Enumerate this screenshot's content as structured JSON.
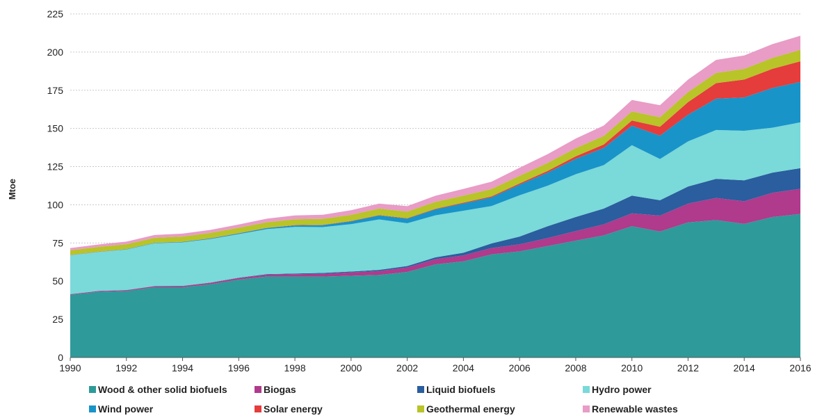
{
  "chart_data": {
    "type": "area",
    "stacked": true,
    "ylabel": "Mtoe",
    "xlabel": "",
    "title": "",
    "ylim": [
      0,
      225
    ],
    "yticks": [
      0,
      25,
      50,
      75,
      100,
      125,
      150,
      175,
      200,
      225
    ],
    "x": [
      1990,
      1991,
      1992,
      1993,
      1994,
      1995,
      1996,
      1997,
      1998,
      1999,
      2000,
      2001,
      2002,
      2003,
      2004,
      2005,
      2006,
      2007,
      2008,
      2009,
      2010,
      2011,
      2012,
      2013,
      2014,
      2015,
      2016
    ],
    "xticks": [
      "1990",
      "1992",
      "1994",
      "1996",
      "1998",
      "2000",
      "2002",
      "2004",
      "2006",
      "2008",
      "2010",
      "2012",
      "2014",
      "2016"
    ],
    "grid": "horizontal",
    "legend_position": "bottom",
    "series": [
      {
        "name": "Wood & other solid biofuels",
        "color": "#2e9a9a",
        "values": [
          41,
          43,
          43.5,
          46,
          46,
          48,
          51,
          53,
          53,
          53,
          53.5,
          54,
          56,
          61,
          63,
          67.5,
          69.5,
          73,
          76.5,
          80,
          86,
          82.5,
          88.5,
          90,
          87.5,
          92,
          94
        ]
      },
      {
        "name": "Biogas",
        "color": "#b03a8c",
        "values": [
          0.4,
          0.5,
          0.6,
          0.7,
          0.8,
          0.9,
          1.0,
          1.2,
          1.5,
          1.8,
          2.2,
          2.6,
          3.0,
          3.4,
          3.8,
          4.2,
          4.6,
          5.2,
          6.3,
          7.2,
          8.4,
          10.4,
          12.3,
          14.5,
          14.8,
          15.8,
          16.5
        ]
      },
      {
        "name": "Liquid biofuels",
        "color": "#2a5e9e",
        "values": [
          0.1,
          0.1,
          0.1,
          0.1,
          0.1,
          0.2,
          0.3,
          0.4,
          0.5,
          0.6,
          0.6,
          0.8,
          0.9,
          1.2,
          1.8,
          3.0,
          5.1,
          7.8,
          9.2,
          10.3,
          11.6,
          10.1,
          11.2,
          12.5,
          13.7,
          13.2,
          13.5
        ]
      },
      {
        "name": "Hydro power",
        "color": "#7ad9d9",
        "values": [
          25.5,
          25.5,
          26.5,
          28,
          28.5,
          28.5,
          28.5,
          29.5,
          30.5,
          30,
          31,
          33,
          28,
          27.5,
          27.5,
          24.5,
          27,
          26.5,
          28,
          28.5,
          33,
          27,
          29.5,
          32,
          32.5,
          29.5,
          30
        ]
      },
      {
        "name": "Wind power",
        "color": "#1894c9",
        "values": [
          0.1,
          0.1,
          0.2,
          0.2,
          0.3,
          0.4,
          0.5,
          0.7,
          1.0,
          1.3,
          1.9,
          2.6,
          3.0,
          3.9,
          4.8,
          5.7,
          7.0,
          8.6,
          10.1,
          11.3,
          12.8,
          15.3,
          17.5,
          20.5,
          21.8,
          26.0,
          26.5
        ]
      },
      {
        "name": "Solar energy",
        "color": "#e53c3c",
        "values": [
          0.1,
          0.1,
          0.1,
          0.1,
          0.1,
          0.1,
          0.1,
          0.1,
          0.2,
          0.2,
          0.2,
          0.3,
          0.3,
          0.4,
          0.5,
          0.6,
          0.8,
          1.1,
          1.6,
          2.2,
          3.4,
          5.8,
          8.3,
          10.2,
          11.7,
          12.5,
          13.5
        ]
      },
      {
        "name": "Geothermal energy",
        "color": "#b8c428",
        "values": [
          3.0,
          3.1,
          3.2,
          3.3,
          3.4,
          3.5,
          3.6,
          3.7,
          3.8,
          3.9,
          4.0,
          4.2,
          4.3,
          4.5,
          4.6,
          4.8,
          5.0,
          5.2,
          5.4,
          5.6,
          6.0,
          6.2,
          6.5,
          6.7,
          7.0,
          7.2,
          7.5
        ]
      },
      {
        "name": "Renewable wastes",
        "color": "#e89cc6",
        "values": [
          1.5,
          1.6,
          1.7,
          1.8,
          1.9,
          2.0,
          2.1,
          2.3,
          2.5,
          2.7,
          3.0,
          3.3,
          3.6,
          4.0,
          4.4,
          4.8,
          5.3,
          5.8,
          6.3,
          6.8,
          7.4,
          7.9,
          8.2,
          8.5,
          8.8,
          9.0,
          9.2
        ]
      }
    ]
  }
}
